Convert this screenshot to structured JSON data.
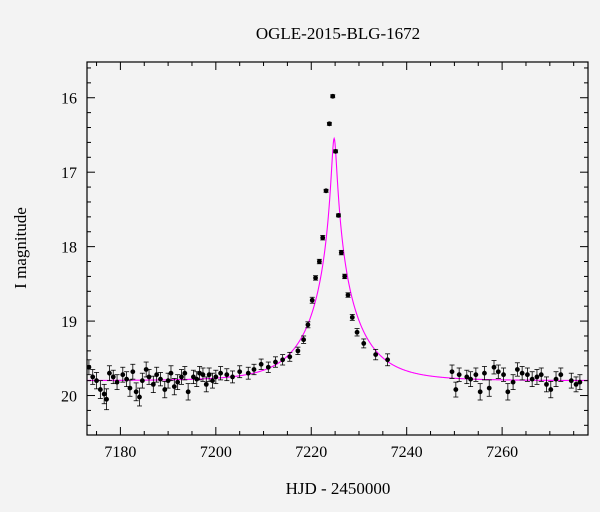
{
  "chart_data": {
    "type": "scatter",
    "title": "OGLE-2015-BLG-1672",
    "xlabel": "HJD - 2450000",
    "ylabel": "I magnitude",
    "xlim": [
      7173,
      7278
    ],
    "ylim": [
      20.53,
      15.52
    ],
    "y_inverted": true,
    "x_ticks": [
      7180,
      7200,
      7220,
      7240,
      7260
    ],
    "y_ticks": [
      16,
      17,
      18,
      19,
      20
    ],
    "grid": false,
    "colors": {
      "points": "#000000",
      "model": "#ff00ff",
      "background": "#f3f3f3"
    },
    "series": [
      {
        "type": "scatter_errorbar",
        "x": [
          7173.4,
          7174.2,
          7175.0,
          7175.8,
          7176.6,
          7177.1,
          7177.7,
          7178.5,
          7179.3,
          7180.5,
          7181.3,
          7182.0,
          7182.6,
          7183.3,
          7184.0,
          7184.6,
          7185.4,
          7186.0,
          7186.9,
          7187.6,
          7188.4,
          7189.3,
          7190.0,
          7190.6,
          7191.3,
          7192.0,
          7192.8,
          7193.5,
          7194.2,
          7195.3,
          7196.0,
          7196.6,
          7197.3,
          7198.0,
          7198.6,
          7199.3,
          7200.0,
          7201.0,
          7202.3,
          7203.5,
          7205.0,
          7206.8,
          7208.0,
          7209.5,
          7211.0,
          7212.5,
          7214.0,
          7215.5,
          7217.2,
          7218.4,
          7219.3,
          7220.2,
          7220.9,
          7221.7,
          7222.4,
          7223.1,
          7223.8,
          7224.5,
          7225.1,
          7225.7,
          7226.3,
          7227.0,
          7227.7,
          7228.6,
          7229.6,
          7231.0,
          7233.5,
          7236.0,
          7249.5,
          7250.3,
          7251.0,
          7252.6,
          7253.4,
          7254.5,
          7255.4,
          7256.3,
          7257.3,
          7258.3,
          7259.2,
          7260.3,
          7261.2,
          7262.3,
          7263.2,
          7264.2,
          7265.3,
          7266.3,
          7267.3,
          7268.2,
          7269.3,
          7270.2,
          7271.3,
          7272.3,
          7274.5,
          7275.5,
          7276.3
        ],
        "y": [
          19.62,
          19.75,
          19.8,
          19.92,
          19.98,
          20.05,
          19.7,
          19.75,
          19.82,
          19.72,
          19.78,
          19.9,
          19.68,
          19.95,
          20.02,
          19.8,
          19.65,
          19.75,
          19.85,
          19.72,
          19.78,
          19.92,
          19.8,
          19.7,
          19.88,
          19.82,
          19.75,
          19.7,
          19.95,
          19.75,
          19.78,
          19.7,
          19.72,
          19.85,
          19.72,
          19.8,
          19.75,
          19.7,
          19.72,
          19.75,
          19.68,
          19.7,
          19.65,
          19.58,
          19.62,
          19.55,
          19.52,
          19.48,
          19.4,
          19.25,
          19.05,
          18.72,
          18.42,
          18.2,
          17.88,
          17.25,
          16.35,
          15.98,
          16.72,
          17.58,
          18.08,
          18.4,
          18.65,
          18.95,
          19.15,
          19.3,
          19.45,
          19.52,
          19.68,
          19.92,
          19.72,
          19.75,
          19.78,
          19.72,
          19.95,
          19.7,
          19.9,
          19.62,
          19.68,
          19.72,
          19.95,
          19.82,
          19.65,
          19.7,
          19.72,
          19.78,
          19.75,
          19.72,
          19.85,
          19.92,
          19.78,
          19.72,
          19.8,
          19.85,
          19.82
        ],
        "yerr": [
          0.1,
          0.1,
          0.11,
          0.12,
          0.13,
          0.14,
          0.1,
          0.09,
          0.1,
          0.1,
          0.1,
          0.11,
          0.1,
          0.12,
          0.12,
          0.1,
          0.1,
          0.1,
          0.11,
          0.1,
          0.09,
          0.11,
          0.1,
          0.1,
          0.11,
          0.1,
          0.1,
          0.09,
          0.11,
          0.09,
          0.1,
          0.09,
          0.09,
          0.1,
          0.09,
          0.1,
          0.09,
          0.09,
          0.08,
          0.08,
          0.08,
          0.08,
          0.07,
          0.07,
          0.07,
          0.07,
          0.07,
          0.06,
          0.05,
          0.05,
          0.04,
          0.04,
          0.03,
          0.03,
          0.03,
          0.02,
          0.02,
          0.02,
          0.02,
          0.02,
          0.03,
          0.03,
          0.03,
          0.04,
          0.05,
          0.06,
          0.07,
          0.08,
          0.09,
          0.1,
          0.09,
          0.09,
          0.1,
          0.09,
          0.11,
          0.09,
          0.11,
          0.09,
          0.09,
          0.09,
          0.11,
          0.1,
          0.09,
          0.09,
          0.09,
          0.1,
          0.1,
          0.09,
          0.1,
          0.11,
          0.1,
          0.09,
          0.1,
          0.1,
          0.1
        ]
      },
      {
        "type": "line",
        "model": {
          "t0": 7224.8,
          "tE": 10.0,
          "u0": 0.05,
          "baseline": 19.8
        }
      }
    ]
  }
}
